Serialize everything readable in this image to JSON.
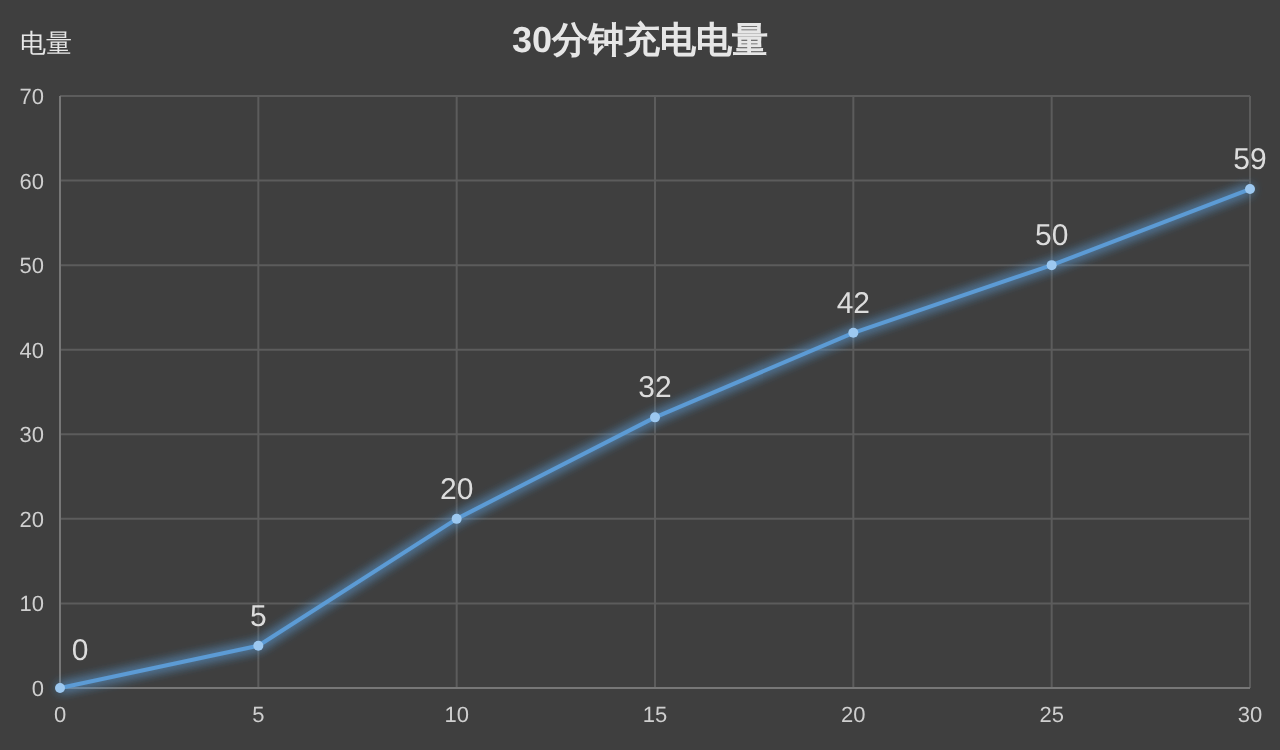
{
  "chart_data": {
    "type": "line",
    "title": "30分钟充电电量",
    "ylabel": "电量",
    "x": [
      0,
      5,
      10,
      15,
      20,
      25,
      30
    ],
    "values": [
      0,
      5,
      20,
      32,
      42,
      50,
      59
    ],
    "color": "#5b9bd5",
    "xlim": [
      0,
      30
    ],
    "ylim": [
      0,
      70
    ],
    "xticks": [
      0,
      5,
      10,
      15,
      20,
      25,
      30
    ],
    "yticks": [
      0,
      10,
      20,
      30,
      40,
      50,
      60,
      70
    ],
    "grid": true,
    "data_labels": true,
    "marker": "circle"
  }
}
